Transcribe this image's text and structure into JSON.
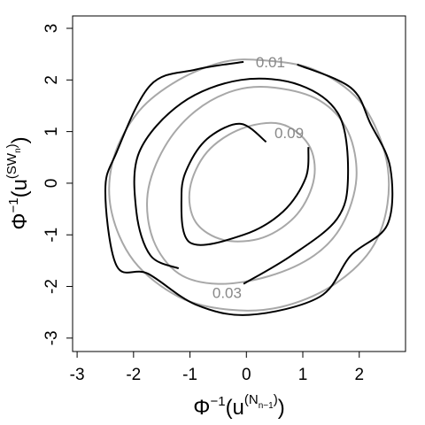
{
  "chart_data": {
    "type": "contour",
    "xlabel": [
      "Φ",
      "−1",
      "(u",
      "(N",
      "n−1",
      ")",
      ")"
    ],
    "ylabel": [
      "Φ",
      "−1",
      "(u",
      "(SW",
      "n",
      ")",
      ")"
    ],
    "xlim": [
      -3.08,
      2.82
    ],
    "ylim": [
      -3.26,
      3.24
    ],
    "xticks": [
      -3,
      -2,
      -1,
      0,
      1,
      2
    ],
    "yticks": [
      -3,
      -2,
      -1,
      0,
      1,
      2,
      3
    ],
    "series": [
      {
        "color": "#a8a8a8",
        "closed": true,
        "level": 0.01,
        "x": [
          0.3,
          1.2,
          2.0,
          2.45,
          2.5,
          2.2,
          1.5,
          0.6,
          -0.3,
          -1.2,
          -2.0,
          -2.4,
          -2.35,
          -1.9,
          -1.2,
          -0.4
        ],
        "y": [
          2.38,
          2.2,
          1.6,
          0.6,
          -0.4,
          -1.3,
          -2.0,
          -2.4,
          -2.45,
          -2.2,
          -1.5,
          -0.5,
          0.5,
          1.4,
          2.0,
          2.35
        ]
      },
      {
        "color": "#a8a8a8",
        "closed": true,
        "level": 0.03,
        "x": [
          0.5,
          1.3,
          1.8,
          1.95,
          1.7,
          1.2,
          0.4,
          -0.5,
          -1.2,
          -1.65,
          -1.75,
          -1.45,
          -0.9,
          -0.2
        ],
        "y": [
          1.85,
          1.6,
          1.0,
          0.1,
          -0.8,
          -1.4,
          -1.8,
          -1.95,
          -1.75,
          -1.1,
          -0.2,
          0.7,
          1.4,
          1.8
        ]
      },
      {
        "color": "#a8a8a8",
        "closed": true,
        "level": 0.09,
        "x": [
          0.6,
          1.1,
          1.2,
          0.9,
          0.3,
          -0.4,
          -0.9,
          -1.0,
          -0.7,
          -0.1
        ],
        "y": [
          1.15,
          0.75,
          0.1,
          -0.6,
          -1.05,
          -1.1,
          -0.75,
          -0.1,
          0.6,
          1.05
        ]
      },
      {
        "color": "#000000",
        "closed": false,
        "x": [
          -0.05,
          -0.9,
          -1.7,
          -2.3,
          -2.5,
          -2.3,
          -1.75,
          -0.9,
          0.05,
          1.3,
          1.85,
          2.5,
          2.55,
          2.2,
          1.85,
          0.9
        ],
        "y": [
          2.35,
          2.2,
          1.9,
          0.6,
          -0.15,
          -1.6,
          -1.75,
          -2.35,
          -2.55,
          -2.2,
          -1.4,
          -0.8,
          0.3,
          1.15,
          1.85,
          2.3
        ]
      },
      {
        "color": "#000000",
        "closed": false,
        "x": [
          -0.05,
          0.8,
          1.6,
          1.8,
          1.65,
          0.95,
          -0.1,
          -1.15,
          -1.9,
          -1.95,
          -1.7,
          -1.2
        ],
        "y": [
          -1.95,
          -1.4,
          -0.7,
          0.1,
          1.3,
          1.9,
          2.0,
          1.55,
          0.6,
          -0.55,
          -1.4,
          -1.65
        ]
      },
      {
        "color": "#000000",
        "closed": false,
        "x": [
          1.1,
          1.05,
          0.65,
          -0.05,
          -1.0,
          -1.15,
          -1.0,
          -0.65,
          -0.1,
          0.35
        ],
        "y": [
          0.7,
          0.1,
          -0.55,
          -1.0,
          -1.15,
          -0.2,
          0.4,
          0.9,
          1.15,
          0.8
        ]
      }
    ]
  }
}
